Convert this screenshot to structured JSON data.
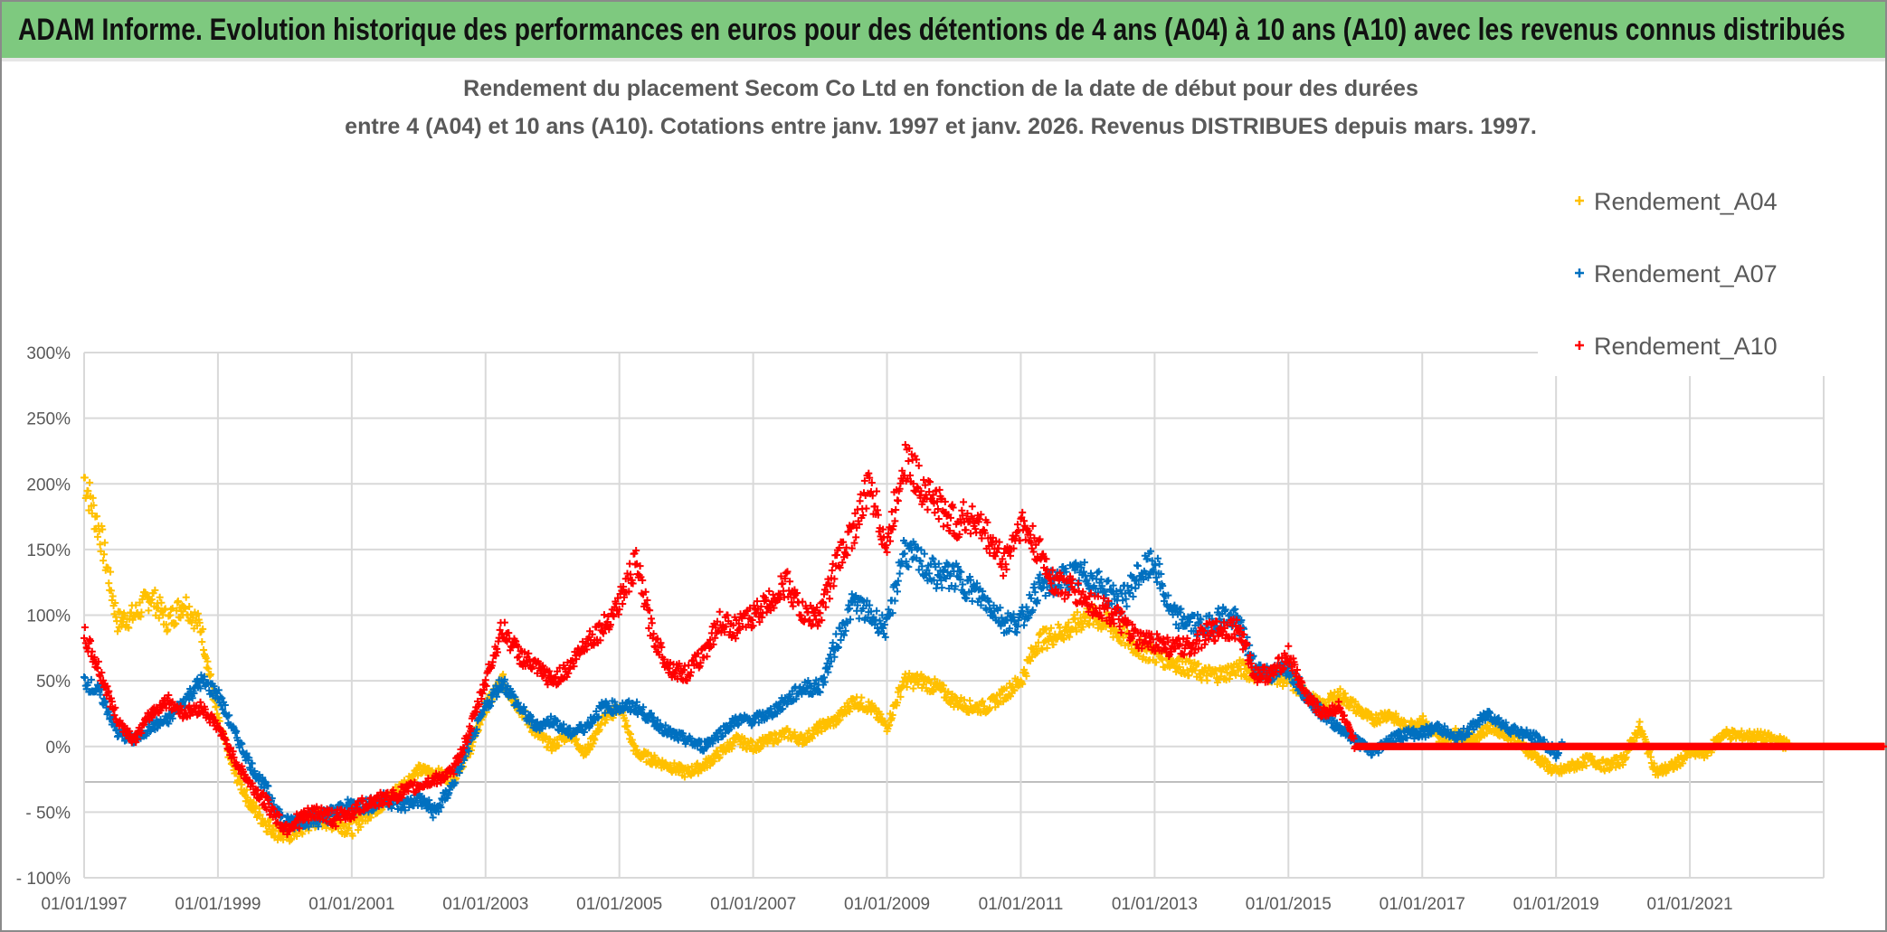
{
  "header": {
    "title": "ADAM Informe. Evolution historique des performances en euros pour des détentions de 4 ans (A04) à 10 ans (A10) avec les revenus connus distribués"
  },
  "chart_data": {
    "type": "scatter",
    "title_lines": [
      "Rendement du placement Secom Co Ltd en fonction de la date de début pour des durées",
      "entre 4 (A04) et 10 ans (A10). Cotations entre janv. 1997 et janv. 2026. Revenus DISTRIBUES depuis mars. 1997."
    ],
    "xlabel": "",
    "ylabel": "",
    "xlim": [
      1997,
      2023
    ],
    "ylim": [
      -100,
      300
    ],
    "grid": true,
    "legend_position": "top-right",
    "y_ticks": [
      {
        "value": 300,
        "label": "300%"
      },
      {
        "value": 250,
        "label": "250%"
      },
      {
        "value": 200,
        "label": "200%"
      },
      {
        "value": 150,
        "label": "150%"
      },
      {
        "value": 100,
        "label": "100%"
      },
      {
        "value": 50,
        "label": "50%"
      },
      {
        "value": 0,
        "label": "0%"
      },
      {
        "value": -50,
        "label": "- 50%"
      },
      {
        "value": -100,
        "label": "- 100%"
      }
    ],
    "x_ticks": [
      {
        "value": 1997,
        "label": "01/01/1997"
      },
      {
        "value": 1999,
        "label": "01/01/1999"
      },
      {
        "value": 2001,
        "label": "01/01/2001"
      },
      {
        "value": 2003,
        "label": "01/01/2003"
      },
      {
        "value": 2005,
        "label": "01/01/2005"
      },
      {
        "value": 2007,
        "label": "01/01/2007"
      },
      {
        "value": 2009,
        "label": "01/01/2009"
      },
      {
        "value": 2011,
        "label": "01/01/2011"
      },
      {
        "value": 2013,
        "label": "01/01/2013"
      },
      {
        "value": 2015,
        "label": "01/01/2015"
      },
      {
        "value": 2017,
        "label": "01/01/2017"
      },
      {
        "value": 2019,
        "label": "01/01/2019"
      },
      {
        "value": 2021,
        "label": "01/01/2021"
      }
    ],
    "series": [
      {
        "name": "Rendement_A04",
        "color": "#ffc000",
        "x": [
          1997.0,
          1997.25,
          1997.5,
          1997.75,
          1998.0,
          1998.25,
          1998.5,
          1998.75,
          1999.0,
          1999.25,
          1999.5,
          1999.75,
          2000.0,
          2000.25,
          2000.5,
          2000.75,
          2001.0,
          2001.25,
          2001.5,
          2001.75,
          2002.0,
          2002.25,
          2002.5,
          2002.75,
          2003.0,
          2003.25,
          2003.5,
          2003.75,
          2004.0,
          2004.25,
          2004.5,
          2004.75,
          2005.0,
          2005.25,
          2005.5,
          2005.75,
          2006.0,
          2006.25,
          2006.5,
          2006.75,
          2007.0,
          2007.25,
          2007.5,
          2007.75,
          2008.0,
          2008.25,
          2008.5,
          2008.75,
          2009.0,
          2009.25,
          2009.5,
          2009.75,
          2010.0,
          2010.25,
          2010.5,
          2010.75,
          2011.0,
          2011.25,
          2011.5,
          2011.75,
          2012.0,
          2012.25,
          2012.5,
          2012.75,
          2013.0,
          2013.25,
          2013.5,
          2013.75,
          2014.0,
          2014.25,
          2014.5,
          2014.75,
          2015.0,
          2015.25,
          2015.5,
          2015.75,
          2016.0,
          2016.25,
          2016.5,
          2016.75,
          2017.0,
          2017.25,
          2017.5,
          2017.75,
          2018.0,
          2018.25,
          2018.5,
          2018.75,
          2019.0,
          2019.25,
          2019.5,
          2019.75,
          2020.0,
          2020.25,
          2020.5,
          2020.75,
          2021.0,
          2021.25,
          2021.5,
          2021.75,
          2022.0,
          2022.3,
          2022.5,
          2023.0,
          2023.9
        ],
        "y": [
          205,
          160,
          95,
          100,
          115,
          95,
          110,
          90,
          20,
          -20,
          -45,
          -60,
          -68,
          -62,
          -55,
          -58,
          -62,
          -50,
          -42,
          -30,
          -18,
          -20,
          -25,
          -5,
          30,
          50,
          30,
          10,
          0,
          10,
          -5,
          20,
          30,
          -5,
          -10,
          -15,
          -20,
          -15,
          -5,
          5,
          0,
          5,
          10,
          5,
          15,
          20,
          35,
          30,
          15,
          50,
          50,
          45,
          35,
          30,
          30,
          40,
          50,
          80,
          85,
          90,
          100,
          95,
          85,
          75,
          70,
          65,
          60,
          55,
          55,
          60,
          55,
          55,
          50,
          40,
          30,
          40,
          30,
          20,
          25,
          15,
          20,
          5,
          10,
          5,
          15,
          10,
          0,
          -10,
          -20,
          -15,
          -10,
          -15,
          -10,
          15,
          -20,
          -15,
          -5,
          -5,
          10,
          8,
          8,
          5,
          0,
          0,
          0
        ]
      },
      {
        "name": "Rendement_A07",
        "color": "#0070c0",
        "x": [
          1997.0,
          1997.25,
          1997.5,
          1997.75,
          1998.0,
          1998.25,
          1998.5,
          1998.75,
          1999.0,
          1999.25,
          1999.5,
          1999.75,
          2000.0,
          2000.25,
          2000.5,
          2000.75,
          2001.0,
          2001.25,
          2001.5,
          2001.75,
          2002.0,
          2002.25,
          2002.5,
          2002.75,
          2003.0,
          2003.25,
          2003.5,
          2003.75,
          2004.0,
          2004.25,
          2004.5,
          2004.75,
          2005.0,
          2005.25,
          2005.5,
          2005.75,
          2006.0,
          2006.25,
          2006.5,
          2006.75,
          2007.0,
          2007.25,
          2007.5,
          2007.75,
          2008.0,
          2008.25,
          2008.5,
          2008.75,
          2009.0,
          2009.25,
          2009.5,
          2009.75,
          2010.0,
          2010.25,
          2010.5,
          2010.75,
          2011.0,
          2011.25,
          2011.5,
          2011.75,
          2012.0,
          2012.25,
          2012.5,
          2012.75,
          2013.0,
          2013.25,
          2013.5,
          2013.75,
          2014.0,
          2014.25,
          2014.5,
          2014.75,
          2015.0,
          2015.25,
          2015.5,
          2015.75,
          2016.0,
          2016.25,
          2016.5,
          2016.75,
          2017.0,
          2017.25,
          2017.5,
          2017.75,
          2018.0,
          2018.25,
          2018.5,
          2018.75,
          2019.0,
          2019.1
        ],
        "y": [
          50,
          40,
          10,
          5,
          15,
          20,
          35,
          50,
          40,
          10,
          -15,
          -35,
          -60,
          -55,
          -55,
          -50,
          -45,
          -45,
          -40,
          -45,
          -40,
          -50,
          -30,
          0,
          30,
          50,
          30,
          15,
          20,
          10,
          15,
          30,
          30,
          30,
          20,
          10,
          5,
          0,
          10,
          20,
          20,
          25,
          35,
          45,
          45,
          80,
          110,
          100,
          90,
          150,
          140,
          130,
          130,
          120,
          110,
          95,
          95,
          120,
          125,
          130,
          130,
          120,
          110,
          130,
          140,
          100,
          95,
          90,
          100,
          95,
          60,
          55,
          60,
          40,
          25,
          15,
          5,
          -5,
          5,
          10,
          10,
          15,
          5,
          15,
          25,
          15,
          10,
          5,
          -5,
          0
        ]
      },
      {
        "name": "Rendement_A10",
        "color": "#ff0000",
        "x": [
          1997.0,
          1997.25,
          1997.5,
          1997.75,
          1998.0,
          1998.25,
          1998.5,
          1998.75,
          1999.0,
          1999.25,
          1999.5,
          1999.75,
          2000.0,
          2000.25,
          2000.5,
          2000.75,
          2001.0,
          2001.25,
          2001.5,
          2001.75,
          2002.0,
          2002.25,
          2002.5,
          2002.75,
          2003.0,
          2003.25,
          2003.5,
          2003.75,
          2004.0,
          2004.25,
          2004.5,
          2004.75,
          2005.0,
          2005.25,
          2005.5,
          2005.75,
          2006.0,
          2006.25,
          2006.5,
          2006.75,
          2007.0,
          2007.25,
          2007.5,
          2007.75,
          2008.0,
          2008.25,
          2008.5,
          2008.75,
          2009.0,
          2009.25,
          2009.5,
          2009.75,
          2010.0,
          2010.25,
          2010.5,
          2010.75,
          2011.0,
          2011.25,
          2011.5,
          2011.75,
          2012.0,
          2012.25,
          2012.5,
          2012.75,
          2013.0,
          2013.25,
          2013.5,
          2013.75,
          2014.0,
          2014.25,
          2014.5,
          2014.75,
          2015.0,
          2015.25,
          2015.5,
          2015.75,
          2016.0,
          2020.0,
          2023.9
        ],
        "y": [
          85,
          55,
          20,
          5,
          25,
          35,
          25,
          30,
          15,
          -10,
          -30,
          -45,
          -62,
          -55,
          -50,
          -55,
          -50,
          -42,
          -40,
          -35,
          -30,
          -25,
          -20,
          10,
          50,
          90,
          70,
          60,
          50,
          60,
          80,
          90,
          110,
          140,
          85,
          60,
          55,
          70,
          95,
          90,
          100,
          110,
          125,
          100,
          100,
          140,
          165,
          200,
          150,
          220,
          200,
          185,
          170,
          175,
          160,
          140,
          170,
          150,
          125,
          120,
          110,
          105,
          95,
          80,
          80,
          75,
          75,
          85,
          90,
          90,
          55,
          55,
          70,
          40,
          25,
          30,
          0,
          0,
          0
        ]
      }
    ]
  }
}
